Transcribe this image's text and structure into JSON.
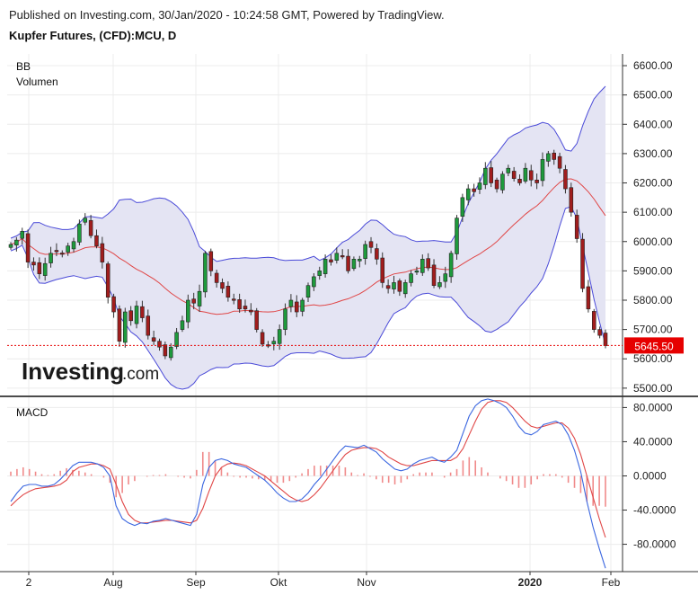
{
  "header": {
    "published": "Published on Investing.com, 30/Jan/2020 - 10:24:58 GMT, Powered by TradingView.",
    "instrument": "Kupfer Futures, (CFD):MCU, D"
  },
  "colors": {
    "up": "#1e9a3c",
    "down": "#a11d1d",
    "band_fill": "#e4e4f3",
    "band_line": "#4a4ad8",
    "sma_line": "#e04646",
    "macd_line": "#3a66e0",
    "signal_line": "#e04646",
    "hist": "#f08a8a",
    "price_tag": "#e60000"
  },
  "chart_data": [
    {
      "type": "candlestick",
      "title": "Kupfer Futures, (CFD):MCU, D",
      "indicators": [
        "BB",
        "Volumen"
      ],
      "y_ticks": [
        "6600.00",
        "6500.00",
        "6400.00",
        "6300.00",
        "6200.00",
        "6100.00",
        "6000.00",
        "5900.00",
        "5800.00",
        "5700.00",
        "5600.00",
        "5500.00"
      ],
      "ylim": [
        5475,
        6640
      ],
      "x_tick_labels": [
        "2",
        "Aug",
        "Sep",
        "Okt",
        "Nov",
        "2020",
        "Feb"
      ],
      "last_price": 5645.5,
      "last_price_label": "5645.50",
      "watermark": "Investing.com",
      "grid": true,
      "series": [
        {
          "name": "price",
          "note": "daily candles",
          "close": [
            5990,
            6005,
            6035,
            5930,
            5920,
            5890,
            5925,
            5960,
            5965,
            5960,
            5985,
            6000,
            6060,
            6080,
            6020,
            5985,
            5930,
            5810,
            5760,
            5660,
            5760,
            5730,
            5780,
            5740,
            5680,
            5660,
            5640,
            5610,
            5640,
            5690,
            5730,
            5800,
            5790,
            5830,
            5960,
            5900,
            5860,
            5840,
            5810,
            5800,
            5770,
            5770,
            5760,
            5700,
            5650,
            5645,
            5660,
            5700,
            5770,
            5800,
            5760,
            5800,
            5850,
            5880,
            5900,
            5940,
            5930,
            5960,
            5950,
            5900,
            5940,
            5940,
            5990,
            5980,
            5940,
            5860,
            5840,
            5860,
            5830,
            5860,
            5890,
            5900,
            5940,
            5910,
            5850,
            5860,
            5890,
            5960,
            6080,
            6150,
            6180,
            6170,
            6200,
            6250,
            6200,
            6180,
            6230,
            6250,
            6215,
            6200,
            6250,
            6210,
            6200,
            6280,
            6300,
            6280,
            6250,
            6180,
            6100,
            6010,
            5840,
            5770,
            5700,
            5680,
            5645
          ]
        },
        {
          "name": "BB upper"
        },
        {
          "name": "BB basis"
        },
        {
          "name": "BB lower"
        }
      ]
    },
    {
      "type": "line",
      "title": "MACD",
      "y_ticks": [
        "80.0000",
        "40.0000",
        "0.0000",
        "-40.0000",
        "-80.0000"
      ],
      "ylim": [
        -112,
        92
      ],
      "series": [
        {
          "name": "MACD",
          "values": [
            -30,
            -20,
            -12,
            -10,
            -10,
            -12,
            -12,
            -10,
            -4,
            4,
            12,
            16,
            16,
            16,
            14,
            10,
            0,
            -35,
            -50,
            -55,
            -58,
            -55,
            -56,
            -53,
            -52,
            -50,
            -52,
            -54,
            -56,
            -58,
            -45,
            -10,
            10,
            18,
            20,
            18,
            14,
            12,
            10,
            5,
            0,
            -5,
            -12,
            -20,
            -26,
            -30,
            -30,
            -27,
            -20,
            -10,
            -2,
            8,
            18,
            28,
            35,
            34,
            33,
            36,
            32,
            28,
            20,
            14,
            8,
            6,
            8,
            14,
            18,
            20,
            22,
            18,
            16,
            22,
            30,
            50,
            70,
            82,
            88,
            90,
            88,
            85,
            80,
            70,
            58,
            50,
            48,
            52,
            60,
            62,
            64,
            60,
            48,
            30,
            5,
            -30,
            -60,
            -85,
            -108
          ]
        },
        {
          "name": "Signal",
          "values": [
            -35,
            -28,
            -22,
            -18,
            -15,
            -14,
            -13,
            -12,
            -10,
            -5,
            5,
            10,
            12,
            14,
            14,
            12,
            8,
            -10,
            -30,
            -45,
            -52,
            -55,
            -55,
            -54,
            -53,
            -52,
            -52,
            -53,
            -54,
            -55,
            -52,
            -38,
            -18,
            0,
            10,
            14,
            15,
            14,
            12,
            8,
            4,
            0,
            -6,
            -12,
            -18,
            -24,
            -28,
            -30,
            -28,
            -22,
            -14,
            -4,
            6,
            16,
            25,
            30,
            32,
            33,
            33,
            32,
            28,
            22,
            18,
            14,
            12,
            12,
            14,
            16,
            18,
            18,
            18,
            18,
            22,
            32,
            48,
            64,
            78,
            86,
            88,
            88,
            86,
            80,
            72,
            64,
            58,
            56,
            58,
            60,
            62,
            62,
            56,
            44,
            25,
            0,
            -25,
            -50,
            -72
          ]
        }
      ],
      "histogram": [
        5,
        8,
        10,
        8,
        5,
        2,
        1,
        2,
        6,
        9,
        7,
        6,
        4,
        2,
        0,
        -2,
        -8,
        -25,
        -20,
        -10,
        -6,
        0,
        -1,
        1,
        1,
        2,
        0,
        -1,
        -2,
        -3,
        7,
        28,
        28,
        18,
        10,
        4,
        -1,
        -2,
        -2,
        -3,
        -4,
        -5,
        -6,
        -8,
        -8,
        -6,
        -2,
        3,
        8,
        12,
        12,
        12,
        12,
        12,
        10,
        4,
        1,
        3,
        -1,
        -4,
        -8,
        -8,
        -10,
        -8,
        -4,
        2,
        4,
        4,
        4,
        0,
        -2,
        4,
        8,
        18,
        22,
        18,
        10,
        4,
        0,
        -3,
        -6,
        -10,
        -14,
        -14,
        -10,
        -4,
        2,
        2,
        2,
        -2,
        -8,
        -14,
        -20,
        -30,
        -35,
        -35,
        -36
      ]
    }
  ],
  "axis_note": ""
}
